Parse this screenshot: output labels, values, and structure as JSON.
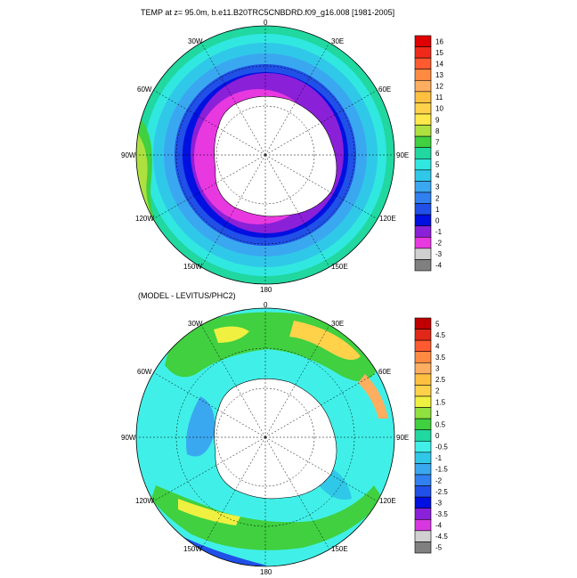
{
  "panels": [
    {
      "id": "top",
      "title": "TEMP at z=  95.0m, b.e11.B20TRC5CNBDRD.f09_g16.008 [1981-2005]",
      "lon_labels": [
        "0",
        "30E",
        "60E",
        "90E",
        "120E",
        "150E",
        "180",
        "150W",
        "120W",
        "90W",
        "60W",
        "30W"
      ],
      "colorbar": {
        "levels": [
          "16",
          "15",
          "14",
          "13",
          "12",
          "11",
          "10",
          "9",
          "8",
          "7",
          "6",
          "5",
          "4",
          "3",
          "2",
          "1",
          "0",
          "-1",
          "-2",
          "-3",
          "-4"
        ],
        "colors": [
          "#e00000",
          "#f02a1a",
          "#ff5a30",
          "#ff8a40",
          "#ffae60",
          "#ffc040",
          "#ffd24a",
          "#ffe84a",
          "#aee040",
          "#40d040",
          "#20d8a0",
          "#30e8e0",
          "#30c8e8",
          "#3aa8f0",
          "#3080f0",
          "#2050e8",
          "#0010e0",
          "#8a20d8",
          "#e838e0",
          "#d0d0d0",
          "#808080"
        ]
      }
    },
    {
      "id": "bottom",
      "title": "(MODEL - LEVITUS/PHC2)",
      "lon_labels": [
        "0",
        "30E",
        "60E",
        "90E",
        "120E",
        "150E",
        "180",
        "150W",
        "120W",
        "90W",
        "60W",
        "30W"
      ],
      "colorbar": {
        "levels": [
          "5",
          "4.5",
          "4",
          "3.5",
          "3",
          "2.5",
          "2",
          "1.5",
          "1",
          "0.5",
          "0",
          "-0.5",
          "-1",
          "-1.5",
          "-2",
          "-2.5",
          "-3",
          "-3.5",
          "-4",
          "-4.5",
          "-5"
        ],
        "colors": [
          "#c00000",
          "#e02818",
          "#ff5a30",
          "#ff8a40",
          "#ffae60",
          "#ffc040",
          "#ffd24a",
          "#f0f040",
          "#90e040",
          "#40d040",
          "#20d8a0",
          "#40f0e8",
          "#30c8e8",
          "#3aa8f0",
          "#3080f0",
          "#2050e8",
          "#0010e0",
          "#8a20d8",
          "#d838e0",
          "#d0d0d0",
          "#808080"
        ]
      }
    }
  ]
}
